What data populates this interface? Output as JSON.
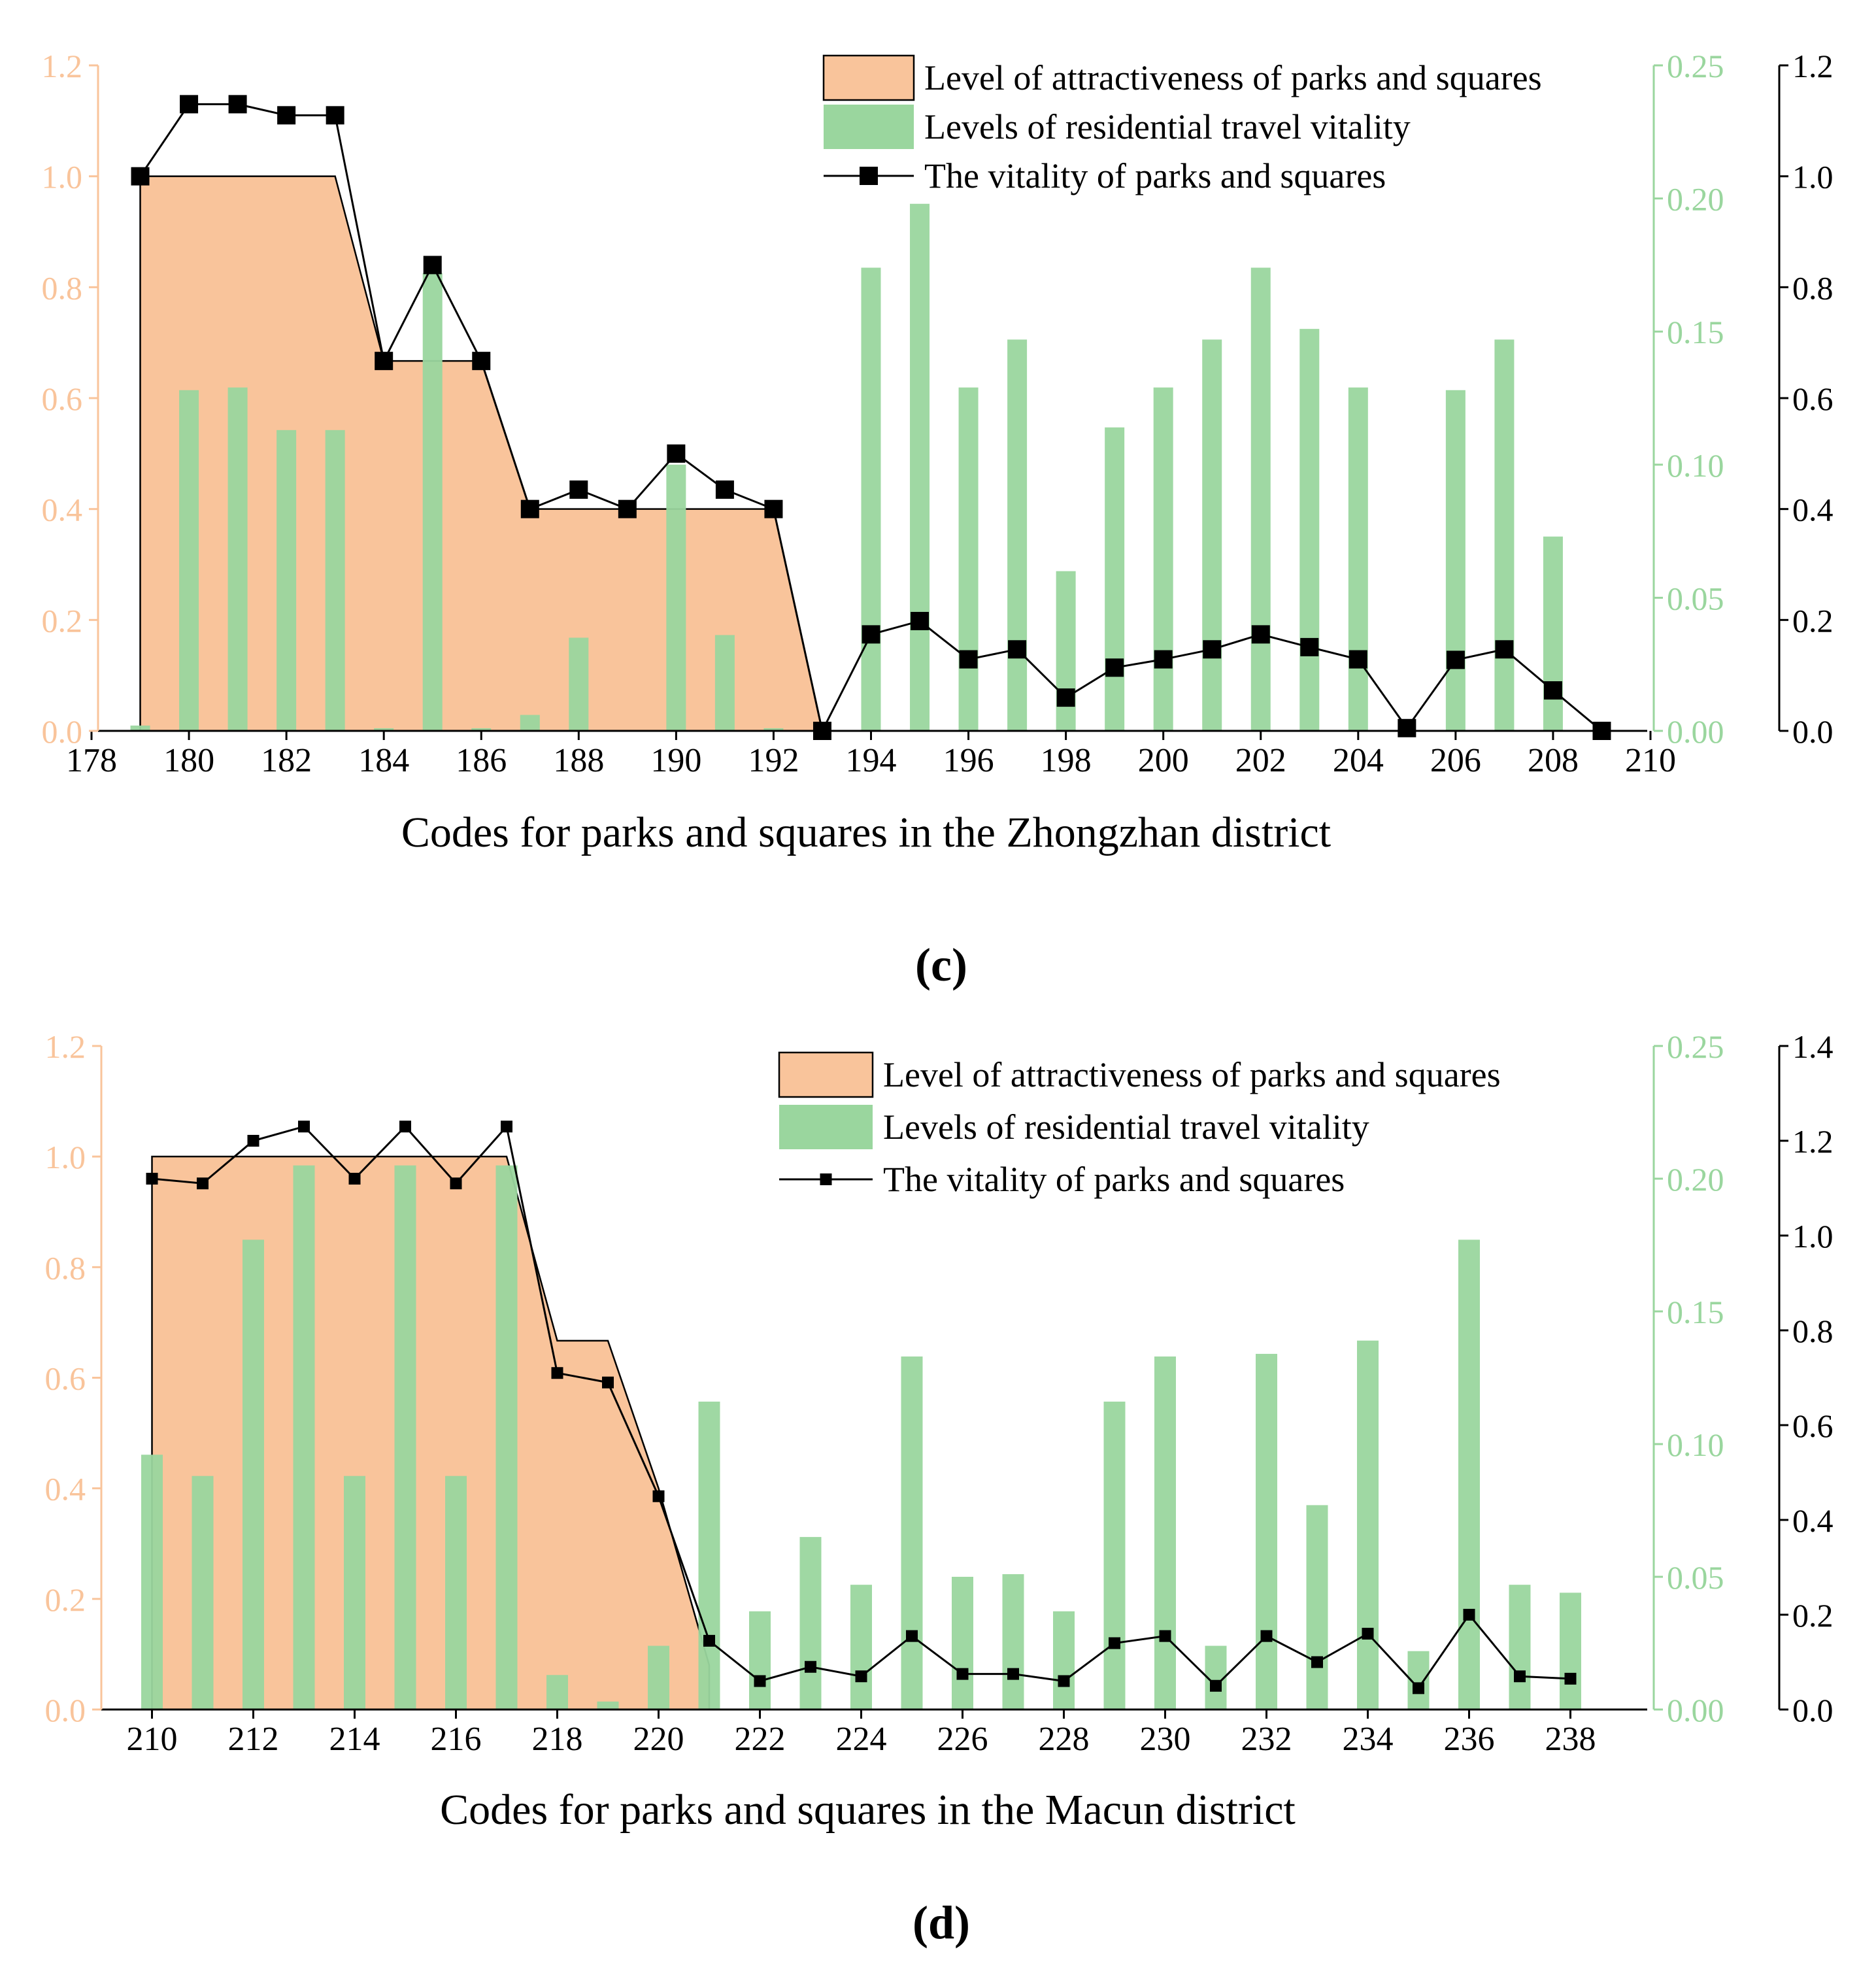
{
  "colors": {
    "attractiveness_fill": "#f9c49b",
    "attractiveness_axis": "#f9c49b",
    "travel_bar": "#9ad69e",
    "travel_axis": "#9ad69e",
    "vitality_line": "#000000"
  },
  "chart_data": [
    {
      "id": "c",
      "type": "bar",
      "caption": "(c)",
      "xlabel": "Codes for parks and squares in the Zhongzhan district",
      "xlim": [
        178,
        210
      ],
      "xticks": [
        178,
        180,
        182,
        184,
        186,
        188,
        190,
        192,
        194,
        196,
        198,
        200,
        202,
        204,
        206,
        208,
        210
      ],
      "legend": {
        "position": "top-right",
        "attractiveness": "Level of attractiveness of parks and squares",
        "travel": "Levels of residential travel vitality",
        "vitality": "The vitality of parks and squares"
      },
      "axes": {
        "attractiveness": {
          "ylim": [
            0,
            1.2
          ],
          "ticks": [
            0,
            0.2,
            0.4,
            0.6,
            0.8,
            1.0,
            1.2
          ],
          "tick_labels": [
            "0.0",
            "0.2",
            "0.4",
            "0.6",
            "0.8",
            "1.0",
            "1.2"
          ]
        },
        "travel": {
          "ylim": [
            0,
            0.25
          ],
          "ticks": [
            0,
            0.05,
            0.1,
            0.15,
            0.2,
            0.25
          ],
          "tick_labels": [
            "0.00",
            "0.05",
            "0.10",
            "0.15",
            "0.20",
            "0.25"
          ]
        },
        "vitality": {
          "ylim": [
            0,
            1.2
          ],
          "ticks": [
            0,
            0.2,
            0.4,
            0.6,
            0.8,
            1.0,
            1.2
          ],
          "tick_labels": [
            "0.0",
            "0.2",
            "0.4",
            "0.6",
            "0.8",
            "1.0",
            "1.2"
          ]
        }
      },
      "series": [
        {
          "name": "Level of attractiveness of parks and squares",
          "type": "area",
          "axis": "attractiveness",
          "points": [
            [
              179,
              0
            ],
            [
              179,
              1.0
            ],
            [
              183,
              1.0
            ],
            [
              184,
              0.667
            ],
            [
              186,
              0.667
            ],
            [
              187,
              0.4
            ],
            [
              192,
              0.4
            ],
            [
              193,
              0
            ]
          ]
        },
        {
          "name": "Levels of residential travel vitality",
          "type": "bar",
          "axis": "travel",
          "x": [
            179,
            180,
            181,
            182,
            183,
            184,
            185,
            186,
            187,
            188,
            189,
            190,
            191,
            192,
            193,
            194,
            195,
            196,
            197,
            198,
            199,
            200,
            201,
            202,
            203,
            204,
            205,
            206,
            207,
            208,
            209
          ],
          "values": [
            0.002,
            0.128,
            0.129,
            0.113,
            0.113,
            0.001,
            0.172,
            0.001,
            0.006,
            0.035,
            0,
            0.1,
            0.036,
            0.001,
            0,
            0.174,
            0.198,
            0.129,
            0.147,
            0.06,
            0.114,
            0.129,
            0.147,
            0.174,
            0.151,
            0.129,
            0,
            0.128,
            0.147,
            0.073,
            0
          ]
        },
        {
          "name": "The vitality of parks and squares",
          "type": "line",
          "axis": "vitality",
          "x": [
            179,
            180,
            181,
            182,
            183,
            184,
            185,
            186,
            187,
            188,
            189,
            190,
            191,
            192,
            193,
            194,
            195,
            196,
            197,
            198,
            199,
            200,
            201,
            202,
            203,
            204,
            205,
            206,
            207,
            208,
            209
          ],
          "values": [
            1.0,
            1.13,
            1.13,
            1.11,
            1.11,
            0.667,
            0.84,
            0.667,
            0.4,
            0.435,
            0.4,
            0.5,
            0.435,
            0.4,
            0,
            0.174,
            0.198,
            0.129,
            0.147,
            0.06,
            0.114,
            0.129,
            0.147,
            0.174,
            0.151,
            0.129,
            0.005,
            0.128,
            0.147,
            0.073,
            0
          ]
        }
      ]
    },
    {
      "id": "d",
      "type": "bar",
      "caption": "(d)",
      "xlabel": "Codes for parks and squares in the Macun district",
      "xlim": [
        209,
        239
      ],
      "xticks": [
        210,
        212,
        214,
        216,
        218,
        220,
        222,
        224,
        226,
        228,
        230,
        232,
        234,
        236,
        238
      ],
      "legend": {
        "position": "top-right",
        "attractiveness": "Level of attractiveness of parks and squares",
        "travel": "Levels of residential travel vitality",
        "vitality": "The vitality of parks and squares"
      },
      "axes": {
        "attractiveness": {
          "ylim": [
            0,
            1.2
          ],
          "ticks": [
            0,
            0.2,
            0.4,
            0.6,
            0.8,
            1.0,
            1.2
          ],
          "tick_labels": [
            "0.0",
            "0.2",
            "0.4",
            "0.6",
            "0.8",
            "1.0",
            "1.2"
          ]
        },
        "travel": {
          "ylim": [
            0,
            0.25
          ],
          "ticks": [
            0,
            0.05,
            0.1,
            0.15,
            0.2,
            0.25
          ],
          "tick_labels": [
            "0.00",
            "0.05",
            "0.10",
            "0.15",
            "0.20",
            "0.25"
          ]
        },
        "vitality": {
          "ylim": [
            0,
            1.4
          ],
          "ticks": [
            0,
            0.2,
            0.4,
            0.6,
            0.8,
            1.0,
            1.2,
            1.4
          ],
          "tick_labels": [
            "0.0",
            "0.2",
            "0.4",
            "0.6",
            "0.8",
            "1.0",
            "1.2",
            "1.4"
          ]
        }
      },
      "series": [
        {
          "name": "Level of attractiveness of parks and squares",
          "type": "area",
          "axis": "attractiveness",
          "points": [
            [
              210,
              0
            ],
            [
              210,
              1.0
            ],
            [
              217,
              1.0
            ],
            [
              218,
              0.667
            ],
            [
              219,
              0.667
            ],
            [
              220,
              0.4
            ],
            [
              221,
              0.08
            ],
            [
              221,
              0
            ]
          ]
        },
        {
          "name": "Levels of residential travel vitality",
          "type": "bar",
          "axis": "travel",
          "x": [
            210,
            211,
            212,
            213,
            214,
            215,
            216,
            217,
            218,
            219,
            220,
            221,
            222,
            223,
            224,
            225,
            226,
            227,
            228,
            229,
            230,
            231,
            232,
            233,
            234,
            235,
            236,
            237,
            238
          ],
          "values": [
            0.096,
            0.088,
            0.177,
            0.205,
            0.088,
            0.205,
            0.088,
            0.205,
            0.013,
            0.003,
            0.024,
            0.116,
            0.037,
            0.065,
            0.047,
            0.133,
            0.05,
            0.051,
            0.037,
            0.116,
            0.133,
            0.024,
            0.134,
            0.077,
            0.139,
            0.022,
            0.177,
            0.047,
            0.044
          ]
        },
        {
          "name": "The vitality of parks and squares",
          "type": "line",
          "axis": "vitality",
          "x": [
            210,
            211,
            212,
            213,
            214,
            215,
            216,
            217,
            218,
            219,
            220,
            221,
            222,
            223,
            224,
            225,
            226,
            227,
            228,
            229,
            230,
            231,
            232,
            233,
            234,
            235,
            236,
            237,
            238
          ],
          "values": [
            1.12,
            1.11,
            1.2,
            1.23,
            1.12,
            1.23,
            1.11,
            1.23,
            0.71,
            0.69,
            0.45,
            0.145,
            0.06,
            0.09,
            0.07,
            0.155,
            0.075,
            0.075,
            0.06,
            0.14,
            0.155,
            0.05,
            0.155,
            0.1,
            0.16,
            0.045,
            0.2,
            0.07,
            0.065
          ]
        }
      ]
    }
  ]
}
